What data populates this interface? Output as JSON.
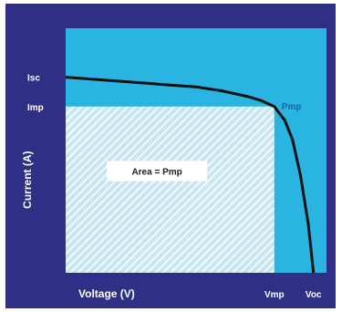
{
  "chart_data": {
    "type": "line",
    "title": "",
    "xlabel": "Voltage (V)",
    "ylabel": "Current (A)",
    "x_ticks": [
      {
        "label": "Vmp",
        "value": 0.8
      },
      {
        "label": "Voc",
        "value": 0.95
      }
    ],
    "y_ticks": [
      {
        "label": "Isc",
        "value": 1.0
      },
      {
        "label": "Imp",
        "value": 0.85
      }
    ],
    "xlim": [
      0,
      1.0
    ],
    "ylim": [
      0,
      1.25
    ],
    "series": [
      {
        "x": [
          0,
          0.1,
          0.2,
          0.3,
          0.4,
          0.5,
          0.6,
          0.7,
          0.75,
          0.8,
          0.84,
          0.87,
          0.9,
          0.93,
          0.95
        ],
        "y": [
          1.0,
          0.99,
          0.98,
          0.97,
          0.96,
          0.95,
          0.93,
          0.9,
          0.88,
          0.85,
          0.78,
          0.68,
          0.5,
          0.25,
          0.0
        ]
      }
    ],
    "annotations": [
      {
        "text": "Pmp",
        "x": 0.8,
        "y": 0.85
      },
      {
        "text": "Area = Pmp",
        "x": 0.35,
        "y": 0.52
      }
    ],
    "colors": {
      "frame": "#2f2f86",
      "plot": "#2ab4e2",
      "curve": "#111111",
      "label_text": "#ffffff",
      "pmp_text": "#1e5fa8",
      "area_box": "#ffffff",
      "area_text": "#222222"
    },
    "grid": false,
    "legend": "none"
  }
}
